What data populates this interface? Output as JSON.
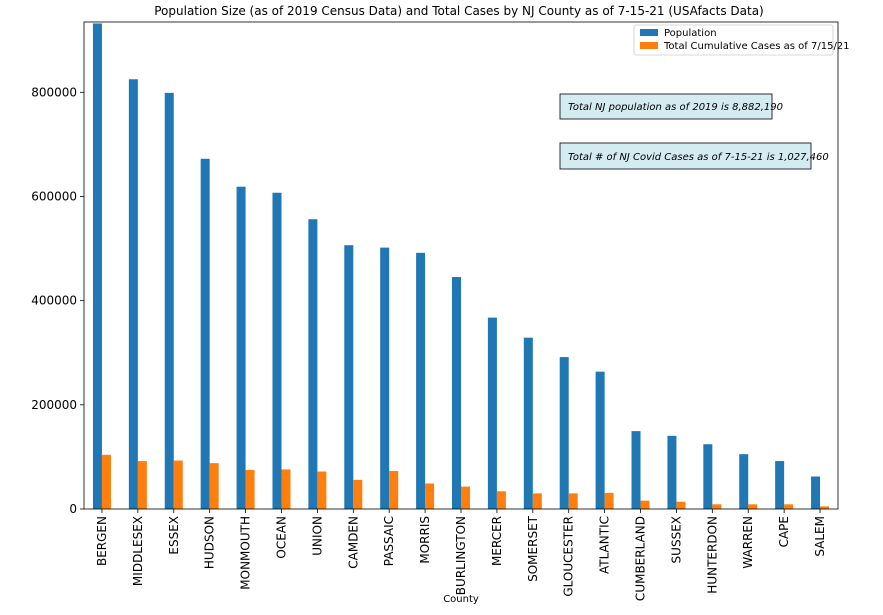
{
  "chart_data": {
    "type": "bar",
    "title": "Population Size (as of 2019 Census Data) and Total Cases by NJ County as of 7-15-21 (USAfacts Data)",
    "xlabel": "County",
    "ylabel": "",
    "ylim": [
      0,
      935000
    ],
    "yticks": [
      "0",
      "200000",
      "400000",
      "600000",
      "800000"
    ],
    "ytick_values": [
      0,
      200000,
      400000,
      600000,
      800000
    ],
    "categories": [
      "BERGEN",
      "MIDDLESEX",
      "ESSEX",
      "HUDSON",
      "MONMOUTH",
      "OCEAN",
      "UNION",
      "CAMDEN",
      "PASSAIC",
      "MORRIS",
      "BURLINGTON",
      "MERCER",
      "SOMERSET",
      "GLOUCESTER",
      "ATLANTIC",
      "CUMBERLAND",
      "SUSSEX",
      "HUNTERDON",
      "WARREN",
      "CAPE",
      "SALEM"
    ],
    "series": [
      {
        "name": "Population",
        "color": "#1f77b4",
        "values": [
          932202,
          825062,
          798975,
          672391,
          618795,
          607186,
          556341,
          506471,
          501826,
          491845,
          445349,
          367430,
          328934,
          291636,
          263670,
          149527,
          140488,
          124371,
          105267,
          92039,
          62385
        ]
      },
      {
        "name": "Total Cumulative Cases as of 7/15/21",
        "color": "#ff7f0e",
        "values": [
          104000,
          92000,
          93000,
          88000,
          75000,
          76000,
          72000,
          56000,
          73000,
          49000,
          43000,
          34000,
          30000,
          30000,
          31000,
          16000,
          14000,
          9000,
          9000,
          9000,
          5000
        ]
      }
    ],
    "legend_position": "top-right",
    "grid": false,
    "annotations": [
      "Total NJ population as of 2019 is 8,882,190",
      "Total # of NJ Covid Cases as of 7-15-21 is 1,027,460"
    ],
    "annotation_bg": "#d4ebf2"
  }
}
